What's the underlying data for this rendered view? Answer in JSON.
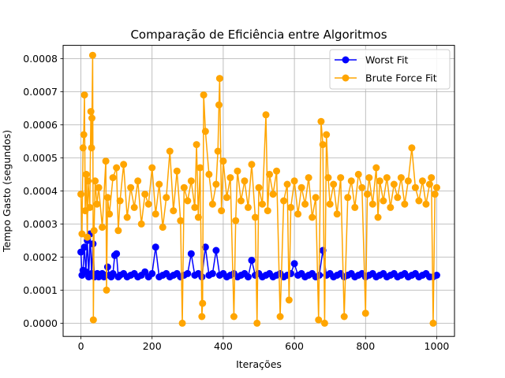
{
  "chart_data": {
    "type": "line",
    "title": "Comparação de Eficiência entre Algoritmos",
    "xlabel": "Iterações",
    "ylabel": "Tempo Gasto (segundos)",
    "xlim": [
      -50,
      1050
    ],
    "ylim": [
      -4e-05,
      0.00084
    ],
    "xticks": [
      0,
      200,
      400,
      600,
      800,
      1000
    ],
    "xtick_labels": [
      "0",
      "200",
      "400",
      "600",
      "800",
      "1000"
    ],
    "yticks": [
      0.0,
      0.0001,
      0.0002,
      0.0003,
      0.0004,
      0.0005,
      0.0006,
      0.0007,
      0.0008
    ],
    "ytick_labels": [
      "0.0000",
      "0.0001",
      "0.0002",
      "0.0003",
      "0.0004",
      "0.0005",
      "0.0006",
      "0.0007",
      "0.0008"
    ],
    "grid": true,
    "legend": "top-right",
    "series": [
      {
        "name": "Worst Fit",
        "color": "#0000ff",
        "x": [
          0,
          3,
          6,
          10,
          14,
          18,
          22,
          26,
          30,
          34,
          38,
          42,
          46,
          50,
          55,
          60,
          65,
          70,
          75,
          80,
          85,
          90,
          95,
          100,
          105,
          110,
          120,
          130,
          140,
          150,
          160,
          170,
          180,
          190,
          200,
          210,
          220,
          230,
          240,
          250,
          260,
          270,
          280,
          290,
          300,
          310,
          320,
          330,
          340,
          350,
          360,
          370,
          380,
          390,
          400,
          410,
          420,
          430,
          440,
          450,
          460,
          470,
          480,
          490,
          500,
          510,
          520,
          530,
          540,
          550,
          560,
          570,
          580,
          590,
          600,
          610,
          620,
          630,
          640,
          650,
          660,
          670,
          680,
          690,
          700,
          710,
          720,
          730,
          740,
          750,
          760,
          770,
          780,
          790,
          800,
          810,
          820,
          830,
          840,
          850,
          860,
          870,
          880,
          890,
          900,
          910,
          920,
          930,
          940,
          950,
          960,
          970,
          980,
          990,
          1000
        ],
        "y": [
          0.000215,
          0.000145,
          0.00016,
          0.00023,
          0.000155,
          0.00025,
          0.00014,
          0.00027,
          0.00015,
          0.00024,
          0.00014,
          0.000145,
          0.00015,
          0.00014,
          0.000145,
          0.00015,
          0.00014,
          0.000145,
          0.00017,
          0.000145,
          0.00014,
          0.00015,
          0.000205,
          0.00021,
          0.00014,
          0.000145,
          0.00015,
          0.00014,
          0.000145,
          0.00015,
          0.00014,
          0.000145,
          0.000155,
          0.00014,
          0.00015,
          0.00023,
          0.00014,
          0.000145,
          0.00015,
          0.00014,
          0.000145,
          0.00015,
          0.00014,
          0.000145,
          0.00015,
          0.00021,
          0.000145,
          0.00015,
          0.00014,
          0.00023,
          0.000145,
          0.00015,
          0.00022,
          0.000145,
          0.00015,
          0.00014,
          0.000145,
          0.00015,
          0.00014,
          0.000145,
          0.00015,
          0.00014,
          0.00019,
          0.000145,
          0.00015,
          0.00014,
          0.000145,
          0.00015,
          0.00014,
          0.000145,
          0.00015,
          0.00014,
          0.000145,
          0.00015,
          0.00018,
          0.000145,
          0.00015,
          0.00014,
          0.000145,
          0.00015,
          0.00014,
          0.000145,
          0.00022,
          0.000145,
          0.00015,
          0.00014,
          0.000145,
          0.00015,
          0.00014,
          0.000145,
          0.00015,
          0.00014,
          0.000145,
          0.00015,
          0.00014,
          0.000145,
          0.00015,
          0.00014,
          0.000145,
          0.00015,
          0.00014,
          0.000145,
          0.00015,
          0.00014,
          0.000145,
          0.00015,
          0.00014,
          0.000145,
          0.00015,
          0.00014,
          0.000145,
          0.00015,
          0.00014,
          0.00014,
          0.000145
        ]
      },
      {
        "name": "Brute Force Fit",
        "color": "#ffa500",
        "x": [
          0,
          3,
          6,
          8,
          10,
          12,
          15,
          18,
          20,
          25,
          28,
          30,
          31,
          33,
          35,
          37,
          40,
          45,
          50,
          60,
          70,
          72,
          75,
          80,
          90,
          100,
          105,
          110,
          120,
          130,
          140,
          150,
          160,
          170,
          180,
          190,
          200,
          210,
          220,
          230,
          240,
          250,
          260,
          270,
          280,
          285,
          290,
          300,
          310,
          320,
          325,
          330,
          335,
          340,
          342,
          345,
          350,
          360,
          370,
          380,
          385,
          388,
          390,
          395,
          400,
          410,
          420,
          430,
          435,
          440,
          450,
          460,
          470,
          480,
          490,
          495,
          500,
          510,
          520,
          525,
          530,
          540,
          550,
          560,
          570,
          580,
          585,
          590,
          600,
          610,
          620,
          630,
          640,
          650,
          660,
          668,
          675,
          680,
          685,
          690,
          695,
          700,
          710,
          720,
          730,
          740,
          750,
          760,
          770,
          780,
          790,
          800,
          805,
          810,
          820,
          830,
          835,
          840,
          850,
          860,
          870,
          880,
          890,
          900,
          910,
          920,
          930,
          940,
          950,
          960,
          970,
          980,
          985,
          990,
          995,
          1000
        ],
        "y": [
          0.00039,
          0.00027,
          0.00053,
          0.00057,
          0.00069,
          0.00034,
          0.00045,
          0.00026,
          0.00043,
          0.00035,
          0.00064,
          0.00053,
          0.00062,
          0.00081,
          1e-05,
          0.00028,
          0.00043,
          0.00036,
          0.00041,
          0.00029,
          0.00049,
          0.0001,
          0.00038,
          0.00033,
          0.00044,
          0.00047,
          0.00028,
          0.00037,
          0.00048,
          0.00032,
          0.00041,
          0.00035,
          0.00043,
          0.0003,
          0.00039,
          0.00036,
          0.00047,
          0.00033,
          0.00042,
          0.00029,
          0.00038,
          0.00052,
          0.00034,
          0.00046,
          0.00031,
          0.0,
          0.00041,
          0.00037,
          0.00043,
          0.00035,
          0.00054,
          0.00032,
          0.00047,
          2e-05,
          6e-05,
          0.00069,
          0.00058,
          0.00045,
          0.00036,
          0.00042,
          0.00052,
          0.00066,
          0.00074,
          0.00034,
          0.00049,
          0.00038,
          0.00044,
          2e-05,
          0.00031,
          0.00046,
          0.00037,
          0.00043,
          0.00035,
          0.00048,
          0.00032,
          0.0,
          0.00041,
          0.00036,
          0.00063,
          0.00034,
          0.00045,
          0.00039,
          0.00046,
          2e-05,
          0.00037,
          0.00042,
          7e-05,
          0.00035,
          0.00043,
          0.00033,
          0.00041,
          0.00036,
          0.00044,
          0.00032,
          0.00038,
          1e-05,
          0.00061,
          0.00054,
          0.0,
          0.00057,
          0.00044,
          0.00036,
          0.00042,
          0.00033,
          0.00044,
          2e-05,
          0.00038,
          0.00043,
          0.00035,
          0.00045,
          0.00041,
          3e-05,
          0.00039,
          0.00044,
          0.00036,
          0.00047,
          0.00032,
          0.00043,
          0.00037,
          0.00044,
          0.00035,
          0.00042,
          0.00038,
          0.00044,
          0.00036,
          0.00043,
          0.00053,
          0.00041,
          0.00037,
          0.00043,
          0.00036,
          0.00042,
          0.00044,
          0.0,
          0.00039,
          0.00041
        ]
      }
    ]
  }
}
